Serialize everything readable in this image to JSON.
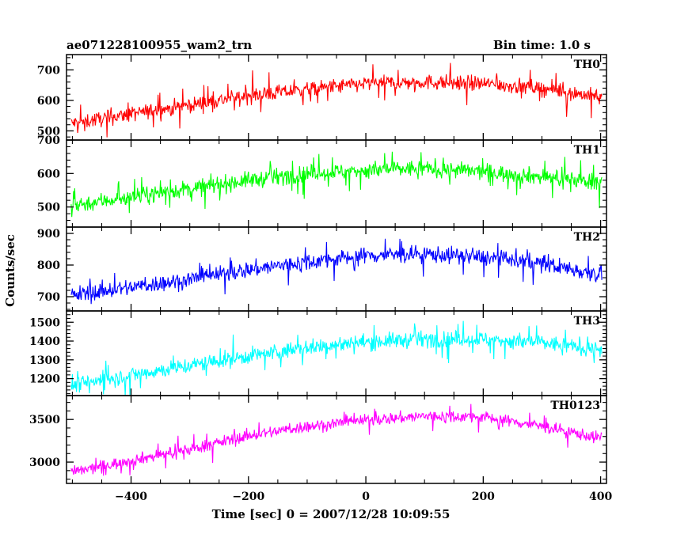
{
  "header": {
    "left_title": "ae071228100955_wam2_trn",
    "right_title": "Bin time: 1.0 s"
  },
  "axes": {
    "xlabel": "Time [sec] 0 = 2007/12/28 10:09:55",
    "ylabel": "Counts/sec"
  },
  "chart_data": {
    "type": "line",
    "shared_x": {
      "range": [
        -510,
        410
      ],
      "bin_time": 1.0,
      "ticks": [
        -400,
        -200,
        0,
        200,
        400
      ],
      "tick_labels": [
        "−400",
        "−200",
        "0",
        "200",
        "400"
      ],
      "label": "Time [sec] 0 = 2007/12/28 10:09:55"
    },
    "ylabel": "Counts/sec",
    "grid": false,
    "panels": [
      {
        "name": "TH0",
        "color": "#ff0000",
        "ylim": [
          470,
          750
        ],
        "ticks": [
          500,
          600,
          700
        ],
        "tick_labels": [
          "500",
          "600",
          "700"
        ],
        "x_start": -502,
        "x_end": 402,
        "trend": {
          "x": [
            -500,
            -400,
            -300,
            -200,
            -100,
            0,
            100,
            200,
            300,
            400
          ],
          "y": [
            525,
            555,
            585,
            615,
            635,
            655,
            660,
            655,
            640,
            610
          ]
        },
        "noise_amplitude": 32
      },
      {
        "name": "TH1",
        "color": "#00ff00",
        "ylim": [
          440,
          700
        ],
        "ticks": [
          500,
          600,
          700
        ],
        "tick_labels": [
          "500",
          "600",
          "700"
        ],
        "x_start": -502,
        "x_end": 402,
        "trend": {
          "x": [
            -500,
            -400,
            -300,
            -200,
            -100,
            0,
            100,
            200,
            300,
            400
          ],
          "y": [
            505,
            530,
            555,
            580,
            600,
            610,
            615,
            605,
            590,
            575
          ]
        },
        "noise_amplitude": 32
      },
      {
        "name": "TH2",
        "color": "#0000ff",
        "ylim": [
          655,
          920
        ],
        "ticks": [
          700,
          800,
          900
        ],
        "tick_labels": [
          "700",
          "800",
          "900"
        ],
        "x_start": -502,
        "x_end": 402,
        "trend": {
          "x": [
            -500,
            -400,
            -300,
            -200,
            -100,
            0,
            100,
            200,
            300,
            400
          ],
          "y": [
            705,
            730,
            755,
            785,
            810,
            830,
            835,
            825,
            805,
            770
          ]
        },
        "noise_amplitude": 34
      },
      {
        "name": "TH3",
        "color": "#00ffff",
        "ylim": [
          1110,
          1560
        ],
        "ticks": [
          1200,
          1300,
          1400,
          1500
        ],
        "tick_labels": [
          "1200",
          "1300",
          "1400",
          "1500"
        ],
        "x_start": -502,
        "x_end": 402,
        "trend": {
          "x": [
            -500,
            -400,
            -300,
            -200,
            -100,
            0,
            100,
            200,
            300,
            400
          ],
          "y": [
            1165,
            1220,
            1270,
            1320,
            1365,
            1395,
            1410,
            1410,
            1390,
            1355
          ]
        },
        "noise_amplitude": 55
      },
      {
        "name": "TH0123",
        "color": "#ff00ff",
        "ylim": [
          2750,
          3780
        ],
        "ticks": [
          3000,
          3500
        ],
        "tick_labels": [
          "3000",
          "3500"
        ],
        "x_start": -502,
        "x_end": 402,
        "trend": {
          "x": [
            -500,
            -400,
            -300,
            -200,
            -100,
            0,
            100,
            200,
            300,
            400
          ],
          "y": [
            2880,
            3020,
            3150,
            3310,
            3420,
            3490,
            3540,
            3530,
            3420,
            3280
          ]
        },
        "noise_amplitude": 90
      }
    ]
  }
}
